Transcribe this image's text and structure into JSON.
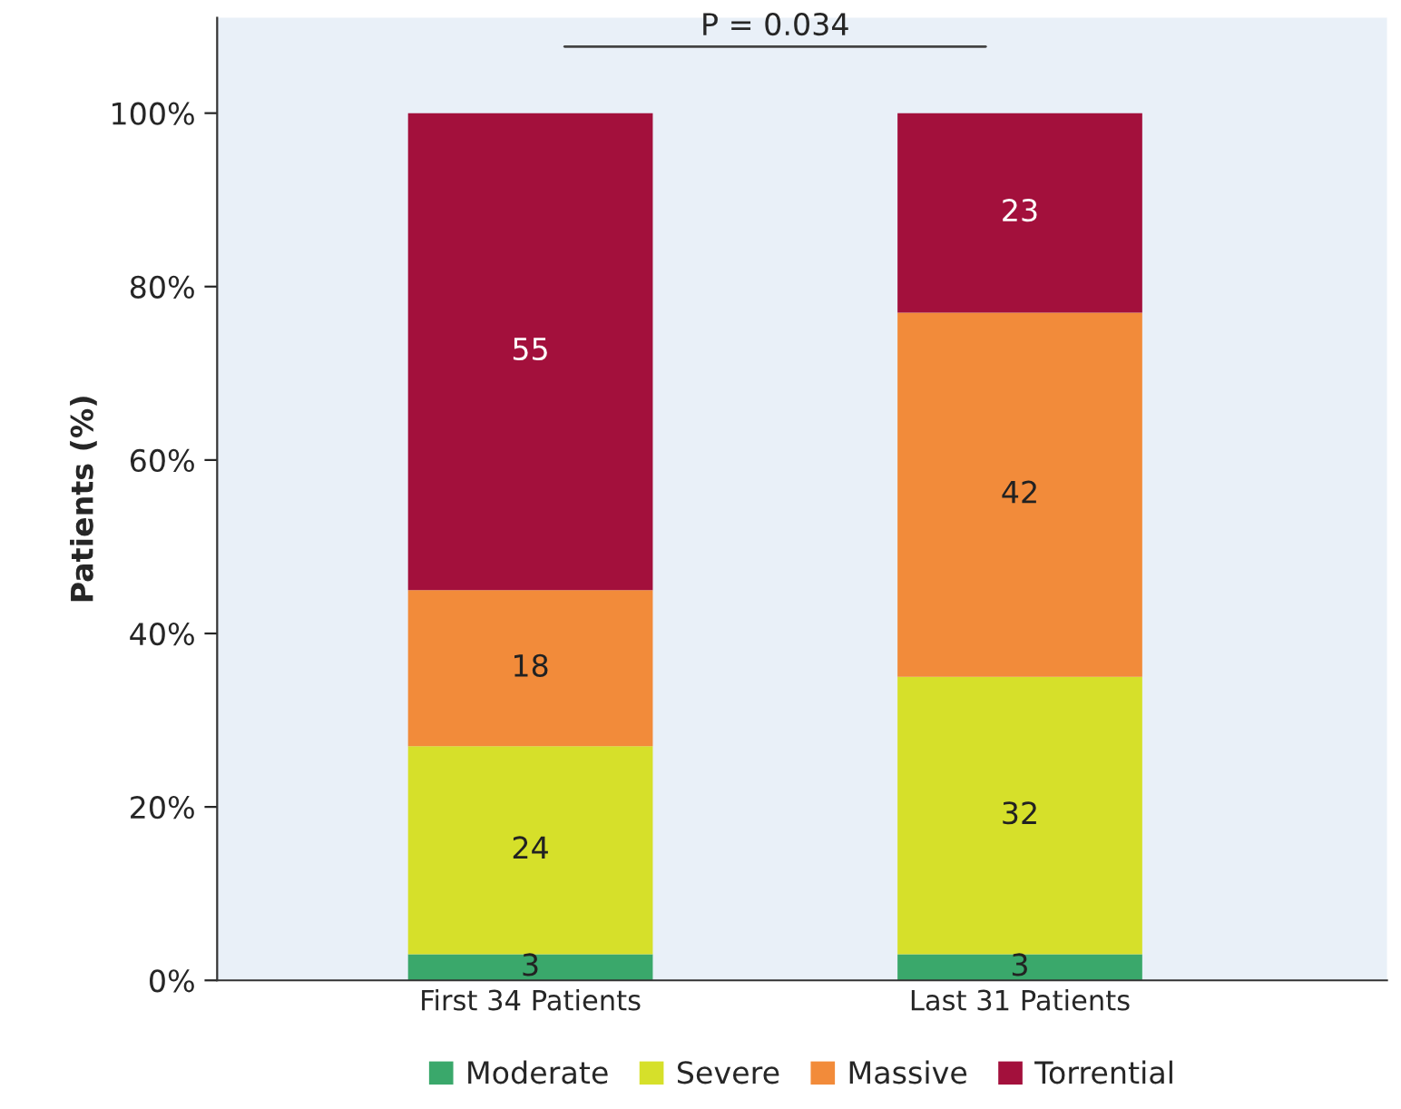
{
  "chart_data": {
    "type": "bar",
    "stacked": true,
    "ylabel": "Patients (%)",
    "categories": [
      "First 34 Patients",
      "Last 31 Patients"
    ],
    "series": [
      {
        "name": "Moderate",
        "color": "#3aa86b",
        "values": [
          3,
          3
        ]
      },
      {
        "name": "Severe",
        "color": "#d6e02a",
        "values": [
          24,
          32
        ]
      },
      {
        "name": "Massive",
        "color": "#f28b3a",
        "values": [
          18,
          42
        ]
      },
      {
        "name": "Torrential",
        "color": "#a3103c",
        "values": [
          55,
          23
        ]
      }
    ],
    "ylim": [
      0,
      111
    ],
    "yticks": [
      {
        "value": 0,
        "label": "0%"
      },
      {
        "value": 20,
        "label": "20%"
      },
      {
        "value": 40,
        "label": "40%"
      },
      {
        "value": 60,
        "label": "60%"
      },
      {
        "value": 80,
        "label": "80%"
      },
      {
        "value": 100,
        "label": "100%"
      }
    ],
    "annotations": [
      "P = 0.034"
    ],
    "data_labels": true,
    "legend": "bottom",
    "grid": false
  }
}
